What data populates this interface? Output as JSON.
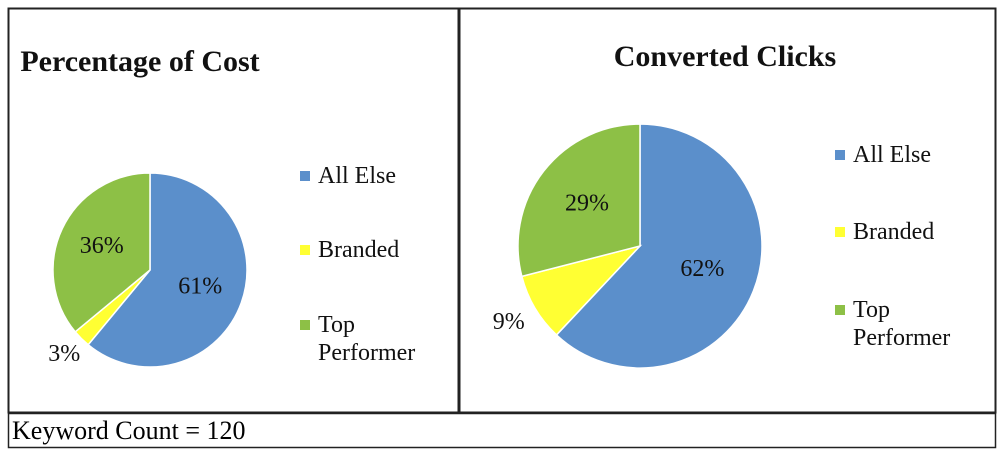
{
  "chart_data": [
    {
      "type": "pie",
      "title": "Percentage of Cost",
      "categories": [
        "All Else",
        "Branded",
        "Top Performer"
      ],
      "values": [
        61,
        3,
        36
      ],
      "value_labels": [
        "61%",
        "3%",
        "36%"
      ],
      "colors": [
        "#5b8fcb",
        "#ffff33",
        "#8dc046"
      ]
    },
    {
      "type": "pie",
      "title": "Converted Clicks",
      "categories": [
        "All Else",
        "Branded",
        "Top Performer"
      ],
      "values": [
        62,
        9,
        29
      ],
      "value_labels": [
        "62%",
        "9%",
        "29%"
      ],
      "colors": [
        "#5b8fcb",
        "#ffff33",
        "#8dc046"
      ]
    }
  ],
  "footer": "Keyword Count = 120"
}
